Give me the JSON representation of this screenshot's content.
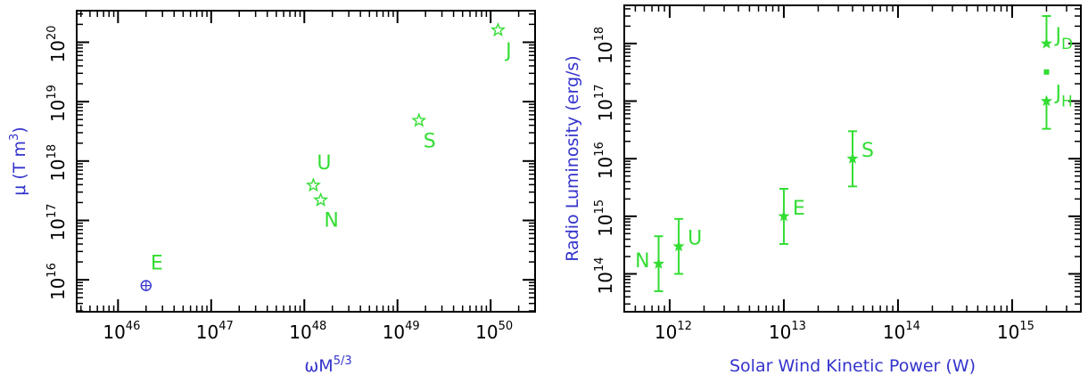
{
  "colors": {
    "axis": "#000000",
    "green": "#33dd33",
    "blue": "#3333cc"
  },
  "chart_data": [
    {
      "type": "scatter",
      "x_scale": "log",
      "y_scale": "log",
      "xlim": [
        3.6e+45,
        3e+50
      ],
      "ylim": [
        2900000000000000.0,
        3.4e+20
      ],
      "xlabel": "ωM",
      "xlabel_sup": "5/3",
      "ylabel": "μ (T m",
      "ylabel_sup": "3",
      "ylabel_end": ")",
      "x_ticks": [
        {
          "base": "10",
          "exp": "46",
          "value": 1e+46
        },
        {
          "base": "10",
          "exp": "47",
          "value": 1e+47
        },
        {
          "base": "10",
          "exp": "48",
          "value": 1e+48
        },
        {
          "base": "10",
          "exp": "49",
          "value": 1e+49
        },
        {
          "base": "10",
          "exp": "50",
          "value": 1e+50
        }
      ],
      "y_ticks": [
        {
          "base": "10",
          "exp": "16",
          "value": 1e+16
        },
        {
          "base": "10",
          "exp": "17",
          "value": 1e+17
        },
        {
          "base": "10",
          "exp": "18",
          "value": 1e+18
        },
        {
          "base": "10",
          "exp": "19",
          "value": 1e+19
        },
        {
          "base": "10",
          "exp": "20",
          "value": 1e+20
        }
      ],
      "points": [
        {
          "label": "E",
          "x": 2e+46,
          "y": 8000000000000000.0,
          "marker": "earth",
          "color": "#3333cc",
          "label_color": "#33dd33",
          "label_pos": "above"
        },
        {
          "label": "U",
          "x": 1.25e+48,
          "y": 3.9e+17,
          "marker": "star",
          "color": "#33dd33",
          "label_color": "#33dd33",
          "label_pos": "above"
        },
        {
          "label": "N",
          "x": 1.5e+48,
          "y": 2.2e+17,
          "marker": "star",
          "color": "#33dd33",
          "label_color": "#33dd33",
          "label_pos": "below"
        },
        {
          "label": "S",
          "x": 1.7e+49,
          "y": 4.8e+18,
          "marker": "star",
          "color": "#33dd33",
          "label_color": "#33dd33",
          "label_pos": "below"
        },
        {
          "label": "J",
          "x": 1.2e+50,
          "y": 1.6e+20,
          "marker": "star",
          "color": "#33dd33",
          "label_color": "#33dd33",
          "label_pos": "below"
        }
      ]
    },
    {
      "type": "scatter",
      "x_scale": "log",
      "y_scale": "log",
      "xlim": [
        400000000000.0,
        4000000000000000.0
      ],
      "ylim": [
        22000000000000.0,
        4.6e+18
      ],
      "xlabel": "Solar Wind Kinetic Power (W)",
      "ylabel": "Radio Luminosity (erg/s)",
      "x_ticks": [
        {
          "base": "10",
          "exp": "12",
          "value": 1000000000000.0
        },
        {
          "base": "10",
          "exp": "13",
          "value": 10000000000000.0
        },
        {
          "base": "10",
          "exp": "14",
          "value": 100000000000000.0
        },
        {
          "base": "10",
          "exp": "15",
          "value": 1000000000000000.0
        }
      ],
      "y_ticks": [
        {
          "base": "10",
          "exp": "14",
          "value": 100000000000000.0
        },
        {
          "base": "10",
          "exp": "15",
          "value": 1000000000000000.0
        },
        {
          "base": "10",
          "exp": "16",
          "value": 1e+16
        },
        {
          "base": "10",
          "exp": "17",
          "value": 1e+17
        },
        {
          "base": "10",
          "exp": "18",
          "value": 1e+18
        }
      ],
      "points": [
        {
          "label": "N",
          "x": 800000000000.0,
          "y": 150000000000000.0,
          "y_low": 50000000000000.0,
          "y_high": 450000000000000.0,
          "label_pos": "left"
        },
        {
          "label": "U",
          "x": 1200000000000.0,
          "y": 300000000000000.0,
          "y_low": 100000000000000.0,
          "y_high": 900000000000000.0,
          "label_pos": "right"
        },
        {
          "label": "E",
          "x": 10000000000000.0,
          "y": 1000000000000000.0,
          "y_low": 330000000000000.0,
          "y_high": 3000000000000000.0,
          "label_pos": "right"
        },
        {
          "label": "S",
          "x": 40000000000000.0,
          "y": 1e+16,
          "y_low": 3300000000000000.0,
          "y_high": 3e+16,
          "label_pos": "right"
        },
        {
          "label": "J",
          "sub": "D",
          "x": 2000000000000000.0,
          "y": 1e+18,
          "y_low": null,
          "y_high": 3e+18,
          "label_pos": "right"
        },
        {
          "label": "J",
          "sub": "H",
          "x": 2000000000000000.0,
          "y": 1e+17,
          "y_low": 3.3e+16,
          "y_high": null,
          "label_pos": "right"
        }
      ],
      "extra_marks": [
        {
          "x": 2000000000000000.0,
          "y": 3.2e+17,
          "marker": "square"
        }
      ]
    }
  ]
}
